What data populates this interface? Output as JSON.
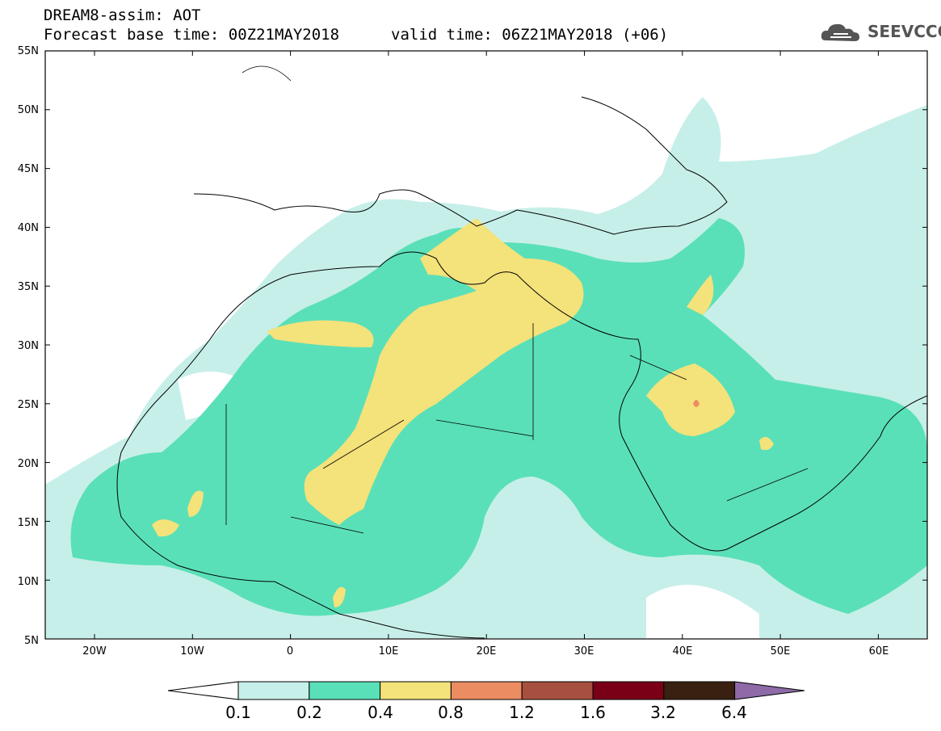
{
  "header": {
    "title": "DREAM8-assim: AOT",
    "base_time": "Forecast base time: 00Z21MAY2018",
    "valid_time": "valid time: 06Z21MAY2018 (+06)"
  },
  "logo": {
    "text": "SEEVCCC",
    "icon": "cloud-icon"
  },
  "axes": {
    "lat_labels": [
      "55N",
      "50N",
      "45N",
      "40N",
      "35N",
      "30N",
      "25N",
      "20N",
      "15N",
      "10N",
      "5N"
    ],
    "lon_labels": [
      "20W",
      "10W",
      "0",
      "10E",
      "20E",
      "30E",
      "40E",
      "50E",
      "60E"
    ]
  },
  "colorbar": {
    "labels": [
      "0.1",
      "0.2",
      "0.4",
      "0.8",
      "1.2",
      "1.6",
      "3.2",
      "6.4"
    ],
    "colors": [
      "#ffffff",
      "#c7efe9",
      "#5ae0b8",
      "#f4e27a",
      "#ec8c62",
      "#a85040",
      "#7a0018",
      "#3a2010",
      "#8e6aa8"
    ]
  }
}
